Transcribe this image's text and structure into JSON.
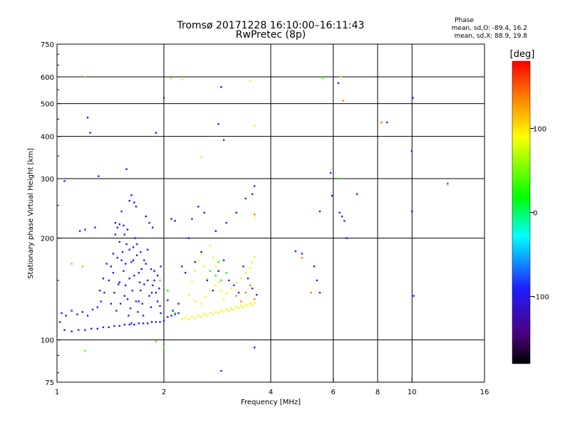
{
  "chart_data": {
    "type": "scatter",
    "title": "Tromsø 20171228 16:10:00–16:11:43",
    "subtitle": "RwPretec (8p)",
    "xlabel": "Frequency [MHz]",
    "ylabel": "Stationary phase Virtual Height [km]",
    "x_scale": "log",
    "y_scale": "log",
    "xlim": [
      1,
      16
    ],
    "ylim": [
      75,
      750
    ],
    "x_ticks": [
      1,
      2,
      4,
      6,
      8,
      10,
      16
    ],
    "x_tick_labels": [
      "1",
      "2",
      "4",
      "6",
      "8",
      "10",
      "16"
    ],
    "y_ticks": [
      75,
      100,
      200,
      300,
      400,
      500,
      600,
      750
    ],
    "y_tick_labels": [
      "75",
      "100",
      "200",
      "300",
      "400",
      "500",
      "600",
      "750"
    ],
    "grid": true,
    "phase_stats": {
      "title": "Phase",
      "o_label": "mean, sd,O:",
      "o_values": "-89.4, 16.2",
      "x_label": "mean, sd,X:",
      "x_values": "88.9, 19.8"
    },
    "colorbar": {
      "label": "[deg]",
      "ticks": [
        100,
        0,
        -100
      ],
      "tick_labels": [
        "100",
        "0",
        "-100"
      ],
      "range": [
        -180,
        180
      ]
    },
    "series": [
      {
        "color_deg": -95,
        "points": [
          [
            1.02,
            113
          ],
          [
            1.05,
            107
          ],
          [
            1.1,
            106
          ],
          [
            1.15,
            107
          ],
          [
            1.2,
            107
          ],
          [
            1.25,
            108
          ],
          [
            1.3,
            108
          ],
          [
            1.35,
            109
          ],
          [
            1.4,
            109
          ],
          [
            1.45,
            110
          ],
          [
            1.5,
            110
          ],
          [
            1.55,
            111
          ],
          [
            1.6,
            111
          ],
          [
            1.65,
            111
          ],
          [
            1.7,
            112
          ],
          [
            1.75,
            112
          ],
          [
            1.8,
            112
          ],
          [
            1.85,
            113
          ],
          [
            1.9,
            113
          ],
          [
            1.95,
            113
          ],
          [
            2.0,
            114
          ],
          [
            2.05,
            117
          ],
          [
            2.1,
            118
          ],
          [
            2.15,
            119
          ],
          [
            2.2,
            120
          ],
          [
            1.03,
            120
          ],
          [
            1.06,
            118
          ],
          [
            1.1,
            122
          ],
          [
            1.14,
            119
          ],
          [
            1.18,
            121
          ],
          [
            1.22,
            118
          ],
          [
            1.26,
            123
          ],
          [
            1.3,
            125
          ],
          [
            1.33,
            130
          ],
          [
            1.36,
            138
          ],
          [
            1.4,
            150
          ],
          [
            1.42,
            165
          ],
          [
            1.44,
            180
          ],
          [
            1.46,
            205
          ],
          [
            1.48,
            215
          ],
          [
            1.5,
            195
          ],
          [
            1.52,
            172
          ],
          [
            1.54,
            160
          ],
          [
            1.56,
            145
          ],
          [
            1.58,
            132
          ],
          [
            1.6,
            152
          ],
          [
            1.62,
            170
          ],
          [
            1.64,
            188
          ],
          [
            1.66,
            200
          ],
          [
            1.68,
            178
          ],
          [
            1.7,
            158
          ],
          [
            1.72,
            140
          ],
          [
            1.74,
            128
          ],
          [
            1.76,
            146
          ],
          [
            1.78,
            168
          ],
          [
            1.8,
            150
          ],
          [
            1.82,
            135
          ],
          [
            1.84,
            125
          ],
          [
            1.86,
            145
          ],
          [
            1.88,
            160
          ],
          [
            1.9,
            138
          ],
          [
            1.92,
            130
          ],
          [
            1.94,
            142
          ],
          [
            1.96,
            120
          ],
          [
            1.42,
            128
          ],
          [
            1.45,
            138
          ],
          [
            1.47,
            122
          ],
          [
            1.49,
            146
          ],
          [
            1.51,
            128
          ],
          [
            1.53,
            182
          ],
          [
            1.55,
            205
          ],
          [
            1.57,
            192
          ],
          [
            1.59,
            118
          ],
          [
            1.61,
            124
          ],
          [
            1.63,
            140
          ],
          [
            1.65,
            155
          ],
          [
            1.67,
            130
          ],
          [
            1.69,
            121
          ],
          [
            1.71,
            148
          ],
          [
            1.73,
            162
          ],
          [
            1.46,
            222
          ],
          [
            1.5,
            220
          ],
          [
            1.54,
            218
          ],
          [
            1.58,
            212
          ],
          [
            1.38,
            168
          ],
          [
            1.35,
            152
          ],
          [
            1.32,
            140
          ],
          [
            1.44,
            158
          ],
          [
            1.48,
            175
          ],
          [
            1.56,
            168
          ],
          [
            1.6,
            185
          ],
          [
            1.64,
            172
          ],
          [
            1.68,
            192
          ],
          [
            1.72,
            182
          ],
          [
            1.76,
            172
          ],
          [
            1.8,
            185
          ],
          [
            1.84,
            162
          ],
          [
            1.88,
            150
          ],
          [
            1.92,
            155
          ],
          [
            1.96,
            165
          ],
          [
            1.65,
            255
          ],
          [
            1.67,
            248
          ],
          [
            1.62,
            268
          ],
          [
            1.6,
            258
          ],
          [
            1.52,
            240
          ],
          [
            1.28,
            215
          ],
          [
            1.2,
            212
          ],
          [
            1.16,
            210
          ],
          [
            1.05,
            295
          ],
          [
            1.22,
            455
          ],
          [
            1.31,
            305
          ],
          [
            1.57,
            320
          ],
          [
            1.24,
            410
          ],
          [
            1.9,
            410
          ],
          [
            2.0,
            520
          ],
          [
            2.1,
            228
          ],
          [
            2.15,
            225
          ],
          [
            1.78,
            232
          ],
          [
            1.82,
            222
          ],
          [
            1.86,
            215
          ],
          [
            2.85,
            435
          ],
          [
            2.95,
            390
          ],
          [
            2.9,
            560
          ],
          [
            3.6,
            285
          ],
          [
            3.55,
            270
          ],
          [
            3.4,
            262
          ],
          [
            3.2,
            238
          ],
          [
            3.0,
            222
          ],
          [
            2.8,
            210
          ],
          [
            2.6,
            238
          ],
          [
            2.5,
            248
          ],
          [
            2.4,
            228
          ],
          [
            2.35,
            200
          ],
          [
            2.25,
            165
          ],
          [
            2.3,
            158
          ],
          [
            2.45,
            170
          ],
          [
            2.55,
            182
          ],
          [
            2.65,
            150
          ],
          [
            2.75,
            140
          ],
          [
            2.85,
            160
          ],
          [
            2.95,
            172
          ],
          [
            3.05,
            150
          ],
          [
            3.15,
            145
          ],
          [
            3.25,
            138
          ],
          [
            3.35,
            165
          ],
          [
            3.45,
            152
          ],
          [
            3.55,
            142
          ],
          [
            3.65,
            136
          ],
          [
            4.7,
            183
          ],
          [
            4.9,
            180
          ],
          [
            5.3,
            165
          ],
          [
            5.4,
            150
          ],
          [
            5.5,
            138
          ],
          [
            5.9,
            312
          ],
          [
            5.95,
            267
          ],
          [
            6.2,
            575
          ],
          [
            6.25,
            238
          ],
          [
            6.35,
            232
          ],
          [
            6.45,
            225
          ],
          [
            6.55,
            200
          ],
          [
            10.1,
            135
          ],
          [
            10.0,
            240
          ],
          [
            10.05,
            520
          ],
          [
            9.98,
            362
          ],
          [
            8.5,
            440
          ],
          [
            7.0,
            270
          ],
          [
            12.6,
            290
          ],
          [
            5.5,
            240
          ],
          [
            3.6,
            95
          ],
          [
            2.9,
            81
          ],
          [
            1.5,
            148
          ],
          [
            1.55,
            135
          ],
          [
            1.62,
            112
          ],
          [
            1.7,
            130
          ],
          [
            1.75,
            118
          ],
          [
            1.85,
            138
          ],
          [
            1.95,
            126
          ],
          [
            2.05,
            131
          ],
          [
            2.12,
            122
          ],
          [
            2.2,
            128
          ]
        ]
      },
      {
        "color_deg": 95,
        "points": [
          [
            2.25,
            115
          ],
          [
            2.3,
            116
          ],
          [
            2.35,
            115
          ],
          [
            2.4,
            117
          ],
          [
            2.45,
            116
          ],
          [
            2.5,
            118
          ],
          [
            2.55,
            117
          ],
          [
            2.6,
            119
          ],
          [
            2.65,
            118
          ],
          [
            2.7,
            120
          ],
          [
            2.75,
            119
          ],
          [
            2.8,
            121
          ],
          [
            2.85,
            120
          ],
          [
            2.9,
            122
          ],
          [
            2.95,
            121
          ],
          [
            3.0,
            123
          ],
          [
            3.05,
            122
          ],
          [
            3.1,
            124
          ],
          [
            3.15,
            123
          ],
          [
            3.2,
            125
          ],
          [
            3.25,
            124
          ],
          [
            3.3,
            126
          ],
          [
            3.35,
            125
          ],
          [
            3.4,
            127
          ],
          [
            3.45,
            126
          ],
          [
            3.5,
            128
          ],
          [
            3.55,
            127
          ],
          [
            3.6,
            129
          ],
          [
            2.4,
            148
          ],
          [
            2.45,
            160
          ],
          [
            2.5,
            172
          ],
          [
            2.55,
            180
          ],
          [
            2.6,
            165
          ],
          [
            2.65,
            152
          ],
          [
            2.7,
            190
          ],
          [
            2.75,
            175
          ],
          [
            2.8,
            165
          ],
          [
            2.85,
            148
          ],
          [
            2.9,
            140
          ],
          [
            2.95,
            132
          ],
          [
            3.0,
            137
          ],
          [
            3.1,
            142
          ],
          [
            3.2,
            147
          ],
          [
            3.3,
            152
          ],
          [
            3.4,
            158
          ],
          [
            3.5,
            163
          ],
          [
            3.55,
            170
          ],
          [
            3.6,
            176
          ],
          [
            2.35,
            136
          ],
          [
            2.45,
            130
          ],
          [
            2.55,
            128
          ],
          [
            2.62,
            134
          ],
          [
            2.7,
            140
          ],
          [
            2.78,
            145
          ],
          [
            6.3,
            600
          ],
          [
            2.25,
            590
          ],
          [
            3.5,
            585
          ],
          [
            3.6,
            430
          ],
          [
            2.55,
            348
          ],
          [
            3.6,
            230
          ]
        ]
      },
      {
        "color_deg": 140,
        "points": [
          [
            3.4,
            138
          ],
          [
            3.5,
            145
          ],
          [
            3.6,
            132
          ],
          [
            3.3,
            130
          ],
          [
            3.2,
            135
          ],
          [
            6.4,
            510
          ],
          [
            8.2,
            440
          ],
          [
            4.9,
            175
          ],
          [
            5.2,
            138
          ],
          [
            3.6,
            235
          ]
        ]
      },
      {
        "color_deg": 25,
        "points": [
          [
            2.7,
            160
          ],
          [
            2.8,
            155
          ],
          [
            2.9,
            150
          ],
          [
            3.0,
            158
          ],
          [
            2.85,
            170
          ],
          [
            1.95,
            150
          ],
          [
            2.05,
            140
          ],
          [
            2.15,
            120
          ],
          [
            5.6,
            600
          ],
          [
            6.2,
            300
          ]
        ]
      },
      {
        "color_deg": 45,
        "points": [
          [
            1.1,
            168
          ],
          [
            1.2,
            600
          ],
          [
            1.2,
            93
          ],
          [
            1.9,
            99
          ],
          [
            2.0,
            95
          ],
          [
            1.18,
            165
          ],
          [
            2.1,
            596
          ],
          [
            5.6,
            595
          ],
          [
            12.6,
            288
          ]
        ]
      }
    ]
  }
}
